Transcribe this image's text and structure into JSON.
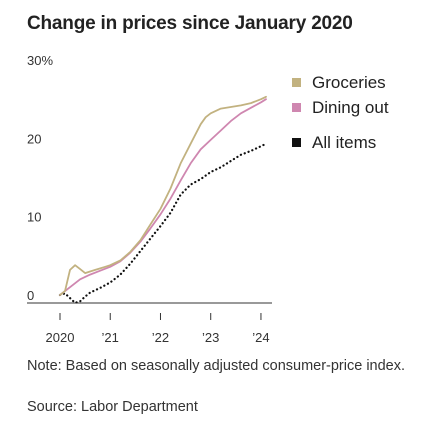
{
  "chart_data": {
    "type": "line",
    "title": "Change in prices since January 2020",
    "y_unit_label": "30%",
    "ylim": [
      0,
      30
    ],
    "xlim": [
      2020,
      2024.2
    ],
    "y_ticks": [
      {
        "value": 30,
        "label": "30%"
      },
      {
        "value": 20,
        "label": "20"
      },
      {
        "value": 10,
        "label": "10"
      },
      {
        "value": 0,
        "label": "0"
      }
    ],
    "x_ticks": [
      {
        "value": 2020,
        "label": "2020"
      },
      {
        "value": 2021,
        "label": "’21"
      },
      {
        "value": 2022,
        "label": "’22"
      },
      {
        "value": 2023,
        "label": "’23"
      },
      {
        "value": 2024,
        "label": "’24"
      }
    ],
    "series": [
      {
        "name": "Groceries",
        "color": "#c2b280",
        "style": "solid",
        "x": [
          2020.0,
          2020.1,
          2020.2,
          2020.3,
          2020.4,
          2020.5,
          2020.6,
          2020.7,
          2020.8,
          2020.9,
          2021.0,
          2021.2,
          2021.4,
          2021.6,
          2021.8,
          2022.0,
          2022.2,
          2022.4,
          2022.6,
          2022.8,
          2022.9,
          2023.0,
          2023.2,
          2023.4,
          2023.6,
          2023.8,
          2024.0,
          2024.1
        ],
        "values": [
          0.0,
          0.5,
          3.2,
          3.8,
          3.3,
          2.8,
          3.0,
          3.2,
          3.4,
          3.6,
          3.8,
          4.4,
          5.5,
          7.0,
          9.0,
          11.0,
          13.6,
          16.8,
          19.3,
          21.8,
          22.7,
          23.2,
          23.8,
          24.0,
          24.2,
          24.5,
          25.0,
          25.3
        ]
      },
      {
        "name": "Dining out",
        "color": "#cf87b0",
        "style": "solid",
        "x": [
          2020.0,
          2020.2,
          2020.4,
          2020.6,
          2020.8,
          2021.0,
          2021.2,
          2021.4,
          2021.6,
          2021.8,
          2022.0,
          2022.2,
          2022.4,
          2022.6,
          2022.8,
          2023.0,
          2023.2,
          2023.4,
          2023.6,
          2023.8,
          2024.0,
          2024.1
        ],
        "values": [
          0.0,
          1.0,
          2.0,
          2.6,
          3.1,
          3.6,
          4.3,
          5.4,
          6.8,
          8.5,
          10.3,
          12.3,
          14.6,
          16.8,
          18.6,
          19.8,
          21.0,
          22.2,
          23.2,
          23.9,
          24.6,
          25.0
        ]
      },
      {
        "name": "All items",
        "color": "#111111",
        "style": "dotted",
        "x": [
          2020.0,
          2020.1,
          2020.2,
          2020.3,
          2020.4,
          2020.5,
          2020.6,
          2020.8,
          2021.0,
          2021.2,
          2021.4,
          2021.6,
          2021.8,
          2022.0,
          2022.2,
          2022.4,
          2022.6,
          2022.8,
          2023.0,
          2023.2,
          2023.4,
          2023.6,
          2023.8,
          2024.0,
          2024.1
        ],
        "values": [
          0.0,
          0.2,
          -0.4,
          -1.0,
          -0.8,
          -0.2,
          0.3,
          0.9,
          1.6,
          2.6,
          4.0,
          5.6,
          7.2,
          8.8,
          10.5,
          12.8,
          14.1,
          14.8,
          15.7,
          16.3,
          17.1,
          17.9,
          18.4,
          19.0,
          19.3
        ]
      }
    ],
    "legend": {
      "position": "top-right",
      "items": [
        "Groceries",
        "Dining out",
        "All items"
      ]
    },
    "grid": false
  },
  "notes": {
    "note": "Note: Based on seasonally adjusted consumer-price index.",
    "source": "Source: Labor Department"
  }
}
